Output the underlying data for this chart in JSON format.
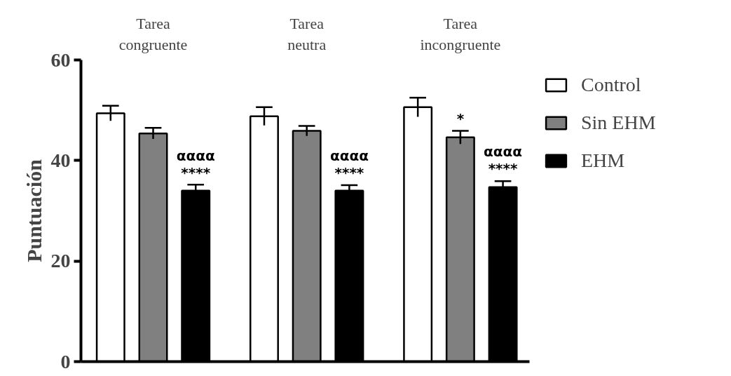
{
  "chart_data": {
    "type": "bar",
    "ylabel": "Puntuación",
    "categories": [
      "Tarea\ncongruente",
      "Tarea\nneutra",
      "Tarea\nincongruente"
    ],
    "series": [
      {
        "name": "Control",
        "color": "#ffffff",
        "values": [
          49.4,
          48.8,
          50.6
        ],
        "errors": [
          1.5,
          1.8,
          1.9
        ]
      },
      {
        "name": "Sin EHM",
        "color": "#808080",
        "values": [
          45.4,
          45.9,
          44.6
        ],
        "errors": [
          1.1,
          1.0,
          1.3
        ],
        "value_labels": [
          null,
          null,
          "*"
        ]
      },
      {
        "name": "EHM",
        "color": "#000000",
        "values": [
          34.0,
          34.0,
          34.7
        ],
        "errors": [
          1.2,
          1.1,
          1.2
        ],
        "value_labels": [
          "αααα\n****",
          "αααα\n****",
          "αααα\n****"
        ]
      }
    ],
    "ylim": [
      0,
      60
    ],
    "yticks": [
      0,
      20,
      40,
      60
    ],
    "grid": false,
    "legend": "right"
  }
}
